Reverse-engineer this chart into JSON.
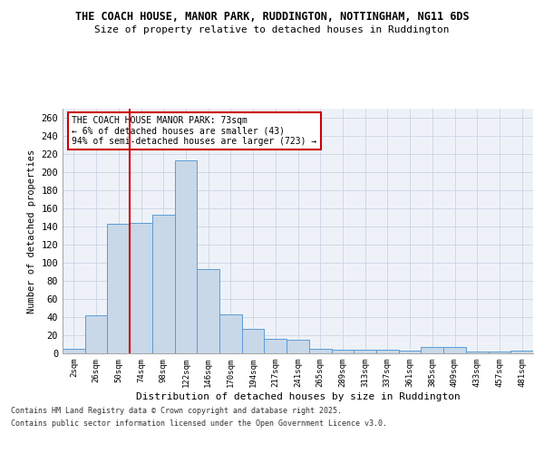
{
  "title1": "THE COACH HOUSE, MANOR PARK, RUDDINGTON, NOTTINGHAM, NG11 6DS",
  "title2": "Size of property relative to detached houses in Ruddington",
  "xlabel": "Distribution of detached houses by size in Ruddington",
  "ylabel": "Number of detached properties",
  "categories": [
    "2sqm",
    "26sqm",
    "50sqm",
    "74sqm",
    "98sqm",
    "122sqm",
    "146sqm",
    "170sqm",
    "194sqm",
    "217sqm",
    "241sqm",
    "265sqm",
    "289sqm",
    "313sqm",
    "337sqm",
    "361sqm",
    "385sqm",
    "409sqm",
    "433sqm",
    "457sqm",
    "481sqm"
  ],
  "values": [
    5,
    42,
    143,
    144,
    153,
    213,
    93,
    43,
    27,
    16,
    15,
    5,
    4,
    4,
    4,
    3,
    7,
    7,
    2,
    2,
    3
  ],
  "bar_color": "#c8d8e8",
  "bar_edge_color": "#5b9bd5",
  "grid_color": "#d0d8e8",
  "vline_color": "#cc0000",
  "vline_pos": 2.5,
  "annotation_title": "THE COACH HOUSE MANOR PARK: 73sqm",
  "annotation_line1": "← 6% of detached houses are smaller (43)",
  "annotation_line2": "94% of semi-detached houses are larger (723) →",
  "annotation_box_color": "#ffffff",
  "annotation_box_edge": "#cc0000",
  "footer1": "Contains HM Land Registry data © Crown copyright and database right 2025.",
  "footer2": "Contains public sector information licensed under the Open Government Licence v3.0.",
  "ylim": [
    0,
    270
  ],
  "yticks": [
    0,
    20,
    40,
    60,
    80,
    100,
    120,
    140,
    160,
    180,
    200,
    220,
    240,
    260
  ],
  "bg_color": "#eef2f8",
  "fig_bg_color": "#ffffff"
}
